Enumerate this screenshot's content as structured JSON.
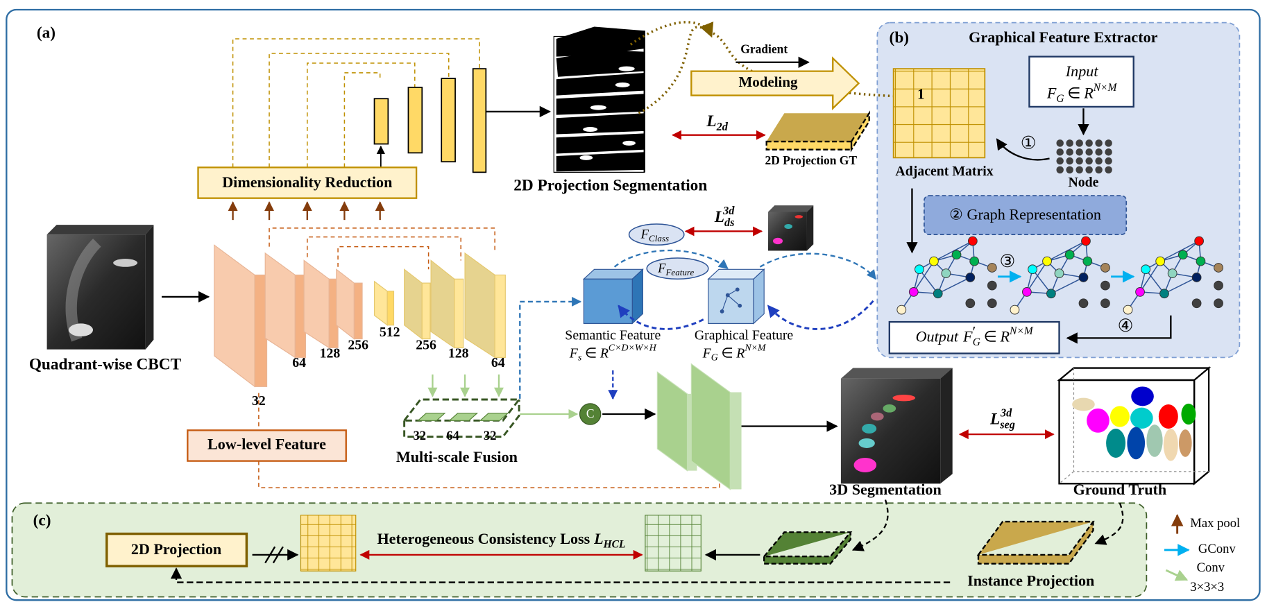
{
  "panel_a": {
    "label": "(a)",
    "input": "Quadrant-wise CBCT",
    "dimensionality_reduction": "Dimensionality Reduction",
    "projection_segmentation": "2D Projection Segmentation",
    "gradient": "Gradient",
    "modeling": "Modeling",
    "loss_2d": {
      "base": "L",
      "sub": "2d"
    },
    "projection_gt": "2D Projection GT",
    "encoder_channels": [
      32,
      64,
      128,
      256,
      512
    ],
    "decoder_channels": [
      256,
      128,
      64
    ],
    "f_class": {
      "base": "F",
      "sub": "Class"
    },
    "f_feature": {
      "base": "F",
      "sub": "Feature"
    },
    "loss_ds": {
      "base": "L",
      "sub": "ds",
      "sup": "3d"
    },
    "semantic_feature": {
      "name": "Semantic Feature",
      "base": "F",
      "sub": "s",
      "rel": "∈",
      "set": "R",
      "sup": "C×D×W×H"
    },
    "graphical_feature": {
      "name": "Graphical Feature",
      "base": "F",
      "sub": "G",
      "rel": "∈",
      "set": "R",
      "sup": "N×M"
    },
    "concat": "C",
    "fusion_channels": [
      32,
      64,
      32
    ],
    "fusion": "Multi-scale Fusion",
    "low_level_feature": "Low-level Feature",
    "segmentation": "3D Segmentation",
    "loss_seg": {
      "base": "L",
      "sub": "seg",
      "sup": "3d"
    },
    "ground_truth": "Ground Truth"
  },
  "panel_b": {
    "label": "(b)",
    "title": "Graphical Feature Extractor",
    "matrix_entry": "1",
    "input": {
      "word": "Input",
      "base": "F",
      "sub": "G",
      "rel": "∈",
      "set": "R",
      "sup": "N×M"
    },
    "adjacent_matrix": "Adjacent Matrix",
    "node": "Node",
    "step1": "①",
    "step2": "② Graph Representation",
    "step3": "③",
    "step4": "④",
    "output": {
      "word": "Output",
      "base": "F",
      "prime": "′",
      "sub": "G",
      "rel": "∈",
      "set": "R",
      "sup": "N×M"
    }
  },
  "panel_c": {
    "label": "(c)",
    "projection": "2D Projection",
    "loss": {
      "name": "Heterogeneous Consistency Loss",
      "base": "L",
      "sub": "HCL"
    },
    "instance_projection": "Instance Projection"
  },
  "legend": [
    "Max pool",
    "GConv",
    "Conv",
    "3×3×3"
  ]
}
